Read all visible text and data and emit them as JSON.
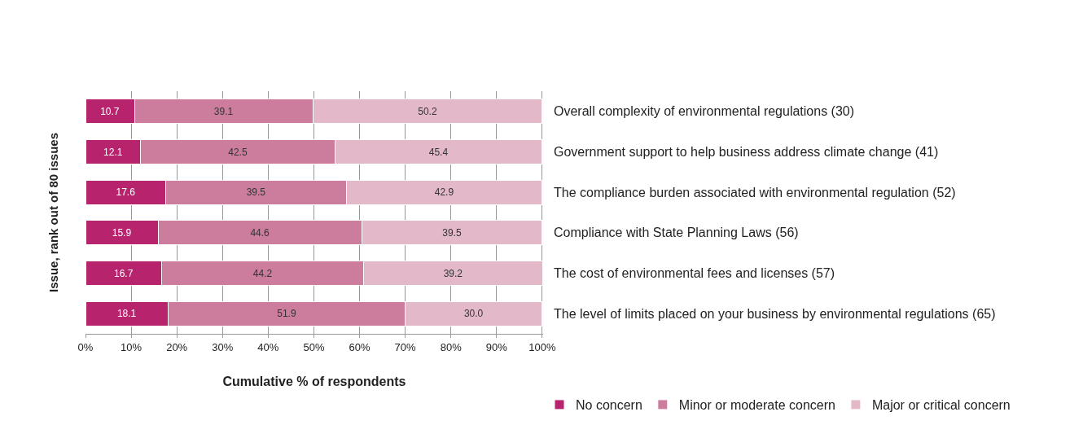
{
  "chart_data": {
    "type": "bar",
    "orientation": "horizontal",
    "stacked": true,
    "xlabel": "Cumulative % of respondents",
    "ylabel": "Issue, rank out of 80 issues",
    "categories": [
      "Overall complexity of environmental regulations (30)",
      "Government support to help business address climate change (41)",
      "The compliance burden associated with environmental regulation (52)",
      "Compliance with State Planning Laws (56)",
      "The cost of environmental fees and licenses (57)",
      "The level of limits placed on your business by environmental regulations (65)"
    ],
    "series": [
      {
        "name": "No concern",
        "color": "#b8236e",
        "values": [
          10.7,
          12.1,
          17.6,
          15.9,
          16.7,
          18.1
        ],
        "value_labels": [
          "10.7",
          "12.1",
          "17.6",
          "15.9",
          "16.7",
          "18.1"
        ]
      },
      {
        "name": "Minor or moderate concern",
        "color": "#cc7d9e",
        "values": [
          39.1,
          42.5,
          39.5,
          44.6,
          44.2,
          51.9
        ],
        "value_labels": [
          "39.1",
          "42.5",
          "39.5",
          "44.6",
          "44.2",
          "51.9"
        ]
      },
      {
        "name": "Major or critical concern",
        "color": "#e3b9ca",
        "values": [
          50.2,
          45.4,
          42.9,
          39.5,
          39.2,
          30.0
        ],
        "value_labels": [
          "50.2",
          "45.4",
          "42.9",
          "39.5",
          "39.2",
          "30.0"
        ]
      }
    ],
    "xlim": [
      0,
      100.2
    ],
    "xticks": [
      {
        "value": 0,
        "label": "0%"
      },
      {
        "value": 10,
        "label": "10%"
      },
      {
        "value": 20,
        "label": "20%"
      },
      {
        "value": 30,
        "label": "30%"
      },
      {
        "value": 40,
        "label": "40%"
      },
      {
        "value": 50,
        "label": "50%"
      },
      {
        "value": 60,
        "label": "60%"
      },
      {
        "value": 70,
        "label": "70%"
      },
      {
        "value": 80,
        "label": "80%"
      },
      {
        "value": 90,
        "label": "90%"
      },
      {
        "value": 100,
        "label": "100%"
      }
    ],
    "grid": "x",
    "legend": "bottom right"
  }
}
